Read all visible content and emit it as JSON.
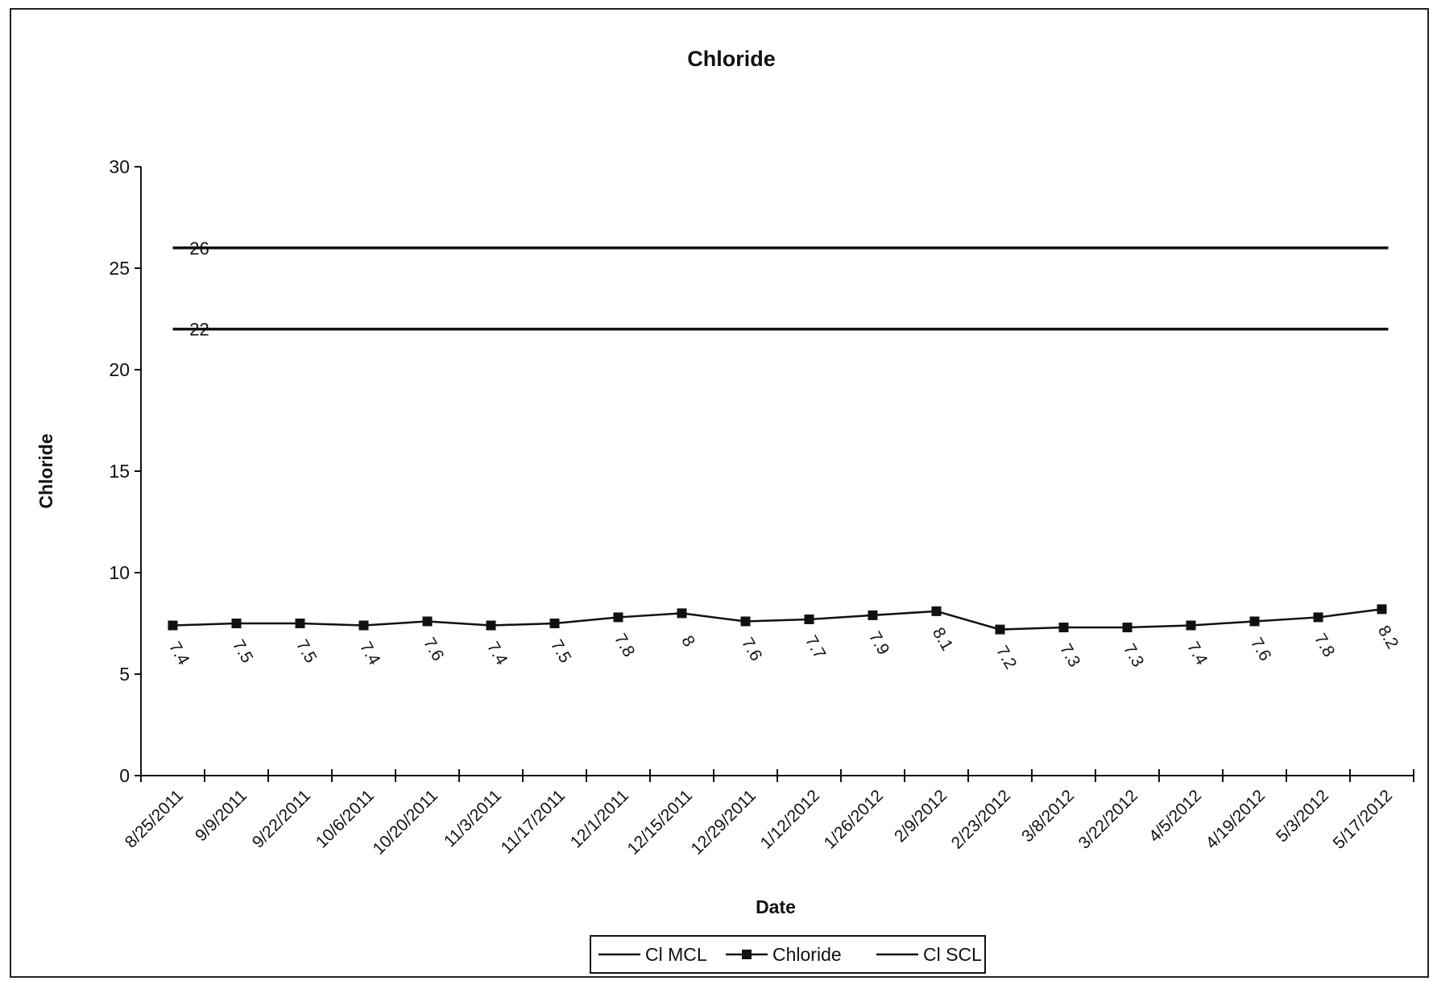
{
  "chart_data": {
    "type": "line",
    "title": "Chloride",
    "xlabel": "Date",
    "ylabel": "Chloride",
    "ylim": [
      0,
      30
    ],
    "yticks": [
      0,
      5,
      10,
      15,
      20,
      25,
      30
    ],
    "grid": false,
    "legend_position": "bottom",
    "categories": [
      "8/25/2011",
      "9/9/2011",
      "9/22/2011",
      "10/6/2011",
      "10/20/2011",
      "11/3/2011",
      "11/17/2011",
      "12/1/2011",
      "12/15/2011",
      "12/29/2011",
      "1/12/2012",
      "1/26/2012",
      "2/9/2012",
      "2/23/2012",
      "3/8/2012",
      "3/22/2012",
      "4/5/2012",
      "4/19/2012",
      "5/3/2012",
      "5/17/2012"
    ],
    "series": [
      {
        "name": "Cl MCL",
        "constant": 26,
        "label": "26",
        "color": "#111111",
        "marker": "none"
      },
      {
        "name": "Chloride",
        "values": [
          7.4,
          7.5,
          7.5,
          7.4,
          7.6,
          7.4,
          7.5,
          7.8,
          8,
          7.6,
          7.7,
          7.9,
          8.1,
          7.2,
          7.3,
          7.3,
          7.4,
          7.6,
          7.8,
          8.2
        ],
        "color": "#111111",
        "marker": "square"
      },
      {
        "name": "Cl SCL",
        "constant": 22,
        "label": "22",
        "color": "#111111",
        "marker": "none"
      }
    ]
  }
}
